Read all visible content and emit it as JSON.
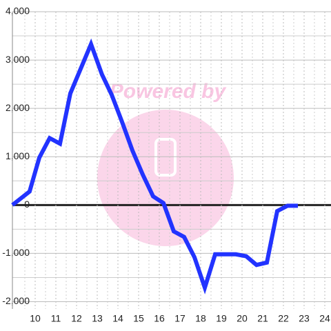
{
  "chart_data": {
    "type": "line",
    "watermark": "Powered by",
    "x": [
      8.9,
      9.73,
      10.2,
      10.7,
      11.2,
      11.7,
      12.7,
      13.23,
      13.7,
      14.2,
      14.7,
      15.2,
      15.7,
      16.2,
      16.7,
      17.2,
      17.7,
      18.2,
      18.7,
      19.2,
      19.7,
      20.2,
      20.7,
      21.2,
      21.7,
      22.2,
      22.7
    ],
    "series": [
      {
        "color": "#2233ff",
        "values": [
          0,
          280,
          980,
          1385,
          1270,
          2310,
          3330,
          2700,
          2280,
          1720,
          1130,
          630,
          180,
          40,
          -545,
          -660,
          -1080,
          -1710,
          -1020,
          -1020,
          -1020,
          -1060,
          -1240,
          -1190,
          -125,
          -15,
          -15
        ]
      }
    ],
    "xlim": [
      8.9,
      24.3
    ],
    "ylim": [
      -2150,
      4000
    ],
    "xticks": [
      10,
      11,
      12,
      13,
      14,
      15,
      16,
      17,
      18,
      19,
      20,
      21,
      22,
      23,
      24
    ],
    "x_minor_grid": [
      9.5,
      10.5,
      11.5,
      12.5,
      13.5,
      14.5,
      15.5,
      16.5,
      17.5,
      18.5,
      19.5,
      20.5,
      21.5,
      22.5,
      23.5
    ],
    "yticks": [
      {
        "value": 4000,
        "label": "4,000"
      },
      {
        "value": 3000,
        "label": "3,000"
      },
      {
        "value": 2000,
        "label": "2,000"
      },
      {
        "value": 1000,
        "label": "1,000"
      },
      0,
      {
        "value": -1000,
        "label": "-1,000"
      },
      {
        "value": -2000,
        "label": "-2,000"
      }
    ],
    "y_minor_grid": [
      3500,
      2500,
      1500,
      500,
      -500,
      -1500
    ],
    "grid": true
  }
}
